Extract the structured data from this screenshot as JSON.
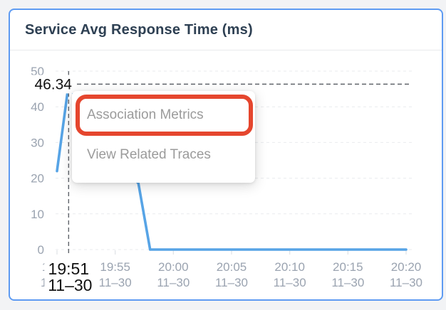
{
  "header": {
    "title": "Service Avg Response Time (ms)"
  },
  "menu": {
    "items": [
      {
        "label": "Association Metrics",
        "highlighted": true
      },
      {
        "label": "View Related Traces",
        "highlighted": false
      }
    ]
  },
  "colors": {
    "card_border": "#5E9BF2",
    "title_text": "#2E4053",
    "axis_label": "#9AA3B0",
    "grid_line": "#E9EBEE",
    "tick_mark": "#DFE2E6",
    "series_line": "#57A4E6",
    "series_marker": "#8CC2F0",
    "crosshair_line": "#60646B",
    "crosshair_label_text": "#111111",
    "menu_text": "#9B9B9B",
    "annotation_red": "#E5462E",
    "page_background": "#F2F3F5"
  },
  "chart_data": {
    "type": "line",
    "title": "Service Avg Response Time (ms)",
    "ylabel": "",
    "xlabel": "",
    "ylim": [
      0,
      50
    ],
    "y_ticks": [
      0,
      10,
      20,
      30,
      40,
      50
    ],
    "grid": "horizontal-dashed",
    "legend_position": "none",
    "x_ticks": [
      {
        "time": "19:50",
        "date": "11–30"
      },
      {
        "time": "19:55",
        "date": "11–30"
      },
      {
        "time": "20:00",
        "date": "11–30"
      },
      {
        "time": "20:05",
        "date": "11–30"
      },
      {
        "time": "20:10",
        "date": "11–30"
      },
      {
        "time": "20:15",
        "date": "11–30"
      },
      {
        "time": "20:20",
        "date": "11–30"
      }
    ],
    "series": [
      {
        "name": "Service Avg Response Time (ms)",
        "color": "#57A4E6",
        "points": [
          [
            "19:50",
            22
          ],
          [
            "19:51",
            46.34
          ],
          [
            "19:52",
            40
          ],
          [
            "19:53",
            34
          ],
          [
            "19:54",
            29
          ],
          [
            "19:55",
            25
          ],
          [
            "19:56",
            22.5
          ],
          [
            "19:57",
            18.5
          ],
          [
            "19:58",
            0
          ],
          [
            "19:59",
            0
          ],
          [
            "20:00",
            0
          ],
          [
            "20:01",
            0
          ],
          [
            "20:02",
            0
          ],
          [
            "20:03",
            0
          ],
          [
            "20:04",
            0
          ],
          [
            "20:05",
            0
          ],
          [
            "20:06",
            0
          ],
          [
            "20:07",
            0
          ],
          [
            "20:08",
            0
          ],
          [
            "20:09",
            0
          ],
          [
            "20:10",
            0
          ],
          [
            "20:11",
            0
          ],
          [
            "20:12",
            0
          ],
          [
            "20:13",
            0
          ],
          [
            "20:14",
            0
          ],
          [
            "20:15",
            0
          ],
          [
            "20:16",
            0
          ],
          [
            "20:17",
            0
          ],
          [
            "20:18",
            0
          ],
          [
            "20:19",
            0
          ],
          [
            "20:20",
            0
          ]
        ]
      }
    ],
    "crosshair": {
      "time": "19:51",
      "value": 46.34,
      "value_label": "46.34",
      "x_label": "19:51",
      "x_date_label": "11–30"
    }
  }
}
